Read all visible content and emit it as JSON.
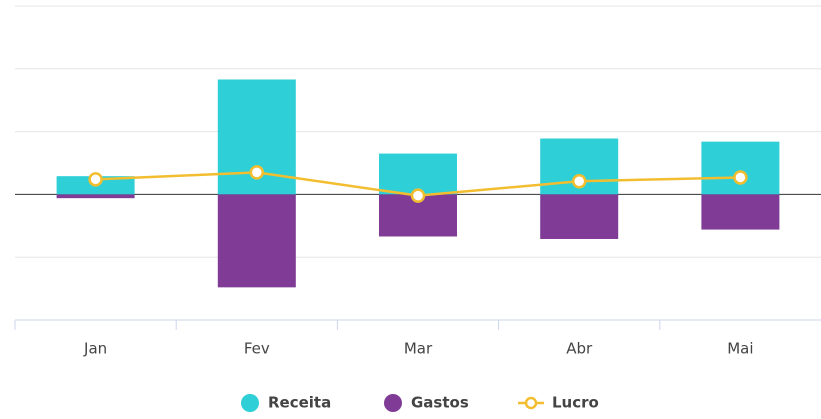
{
  "chart_data": {
    "type": "bar",
    "categories": [
      "Jan",
      "Fev",
      "Mar",
      "Abr",
      "Mai"
    ],
    "series": [
      {
        "name": "Receita",
        "color": "#2ecfd6",
        "values": [
          2.9,
          18.3,
          6.5,
          8.9,
          8.4
        ]
      },
      {
        "name": "Gastos",
        "color": "#7f3b96",
        "values": [
          -0.6,
          -14.8,
          -6.7,
          -7.1,
          -5.6
        ]
      },
      {
        "name": "Lucro",
        "color": "#f2be30",
        "type": "line",
        "values": [
          2.4,
          3.5,
          -0.2,
          2.1,
          2.7
        ]
      }
    ],
    "ylim": [
      -20,
      30
    ],
    "yticks": [
      -10,
      0,
      10,
      20,
      30
    ],
    "grid": true
  }
}
